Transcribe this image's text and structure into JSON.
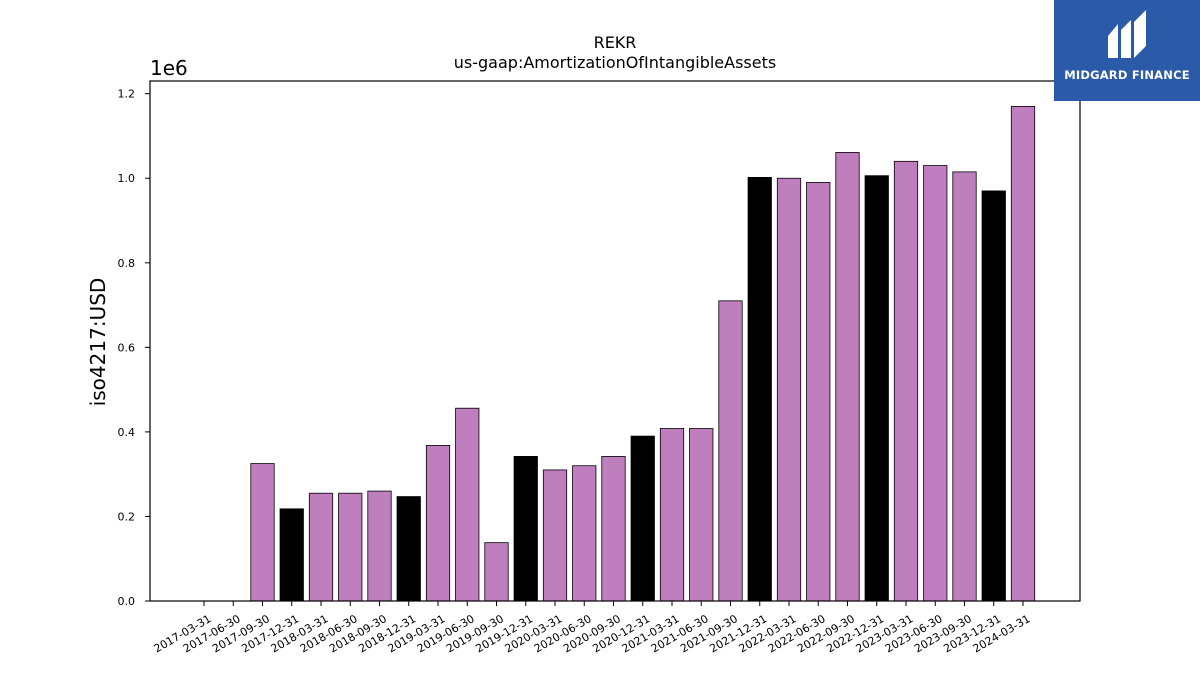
{
  "brand": {
    "name": "MIDGARD FINANCE",
    "color": "#2b5aa8",
    "icon": "midgard-logo-icon"
  },
  "chart_data": {
    "type": "bar",
    "title": "REKR",
    "subtitle": "us-gaap:AmortizationOfIntangibleAssets",
    "ylabel": "iso4217:USD",
    "xlabel": "",
    "y_multiplier_label": "1e6",
    "ylim": [
      0,
      1.23
    ],
    "yticks": [
      "0.0",
      "0.2",
      "0.4",
      "0.6",
      "0.8",
      "1.0",
      "1.2"
    ],
    "grid": false,
    "colors": {
      "quarter": "#bf7fbf",
      "year_end": "#000000"
    },
    "categories": [
      "2017-03-31",
      "2017-06-30",
      "2017-09-30",
      "2017-12-31",
      "2018-03-31",
      "2018-06-30",
      "2018-09-30",
      "2018-12-31",
      "2019-03-31",
      "2019-06-30",
      "2019-09-30",
      "2019-12-31",
      "2020-03-31",
      "2020-06-30",
      "2020-09-30",
      "2020-12-31",
      "2021-03-31",
      "2021-06-30",
      "2021-09-30",
      "2021-12-31",
      "2022-03-31",
      "2022-06-30",
      "2022-09-30",
      "2022-12-31",
      "2023-03-31",
      "2023-06-30",
      "2023-09-30",
      "2023-12-31",
      "2024-03-31"
    ],
    "values": [
      null,
      null,
      0.325,
      0.218,
      0.255,
      0.255,
      0.26,
      0.247,
      0.368,
      0.456,
      0.138,
      0.342,
      0.31,
      0.32,
      0.342,
      0.39,
      0.408,
      0.408,
      0.71,
      1.002,
      1.0,
      0.99,
      1.061,
      1.006,
      1.04,
      1.03,
      1.015,
      0.97,
      1.17
    ]
  }
}
